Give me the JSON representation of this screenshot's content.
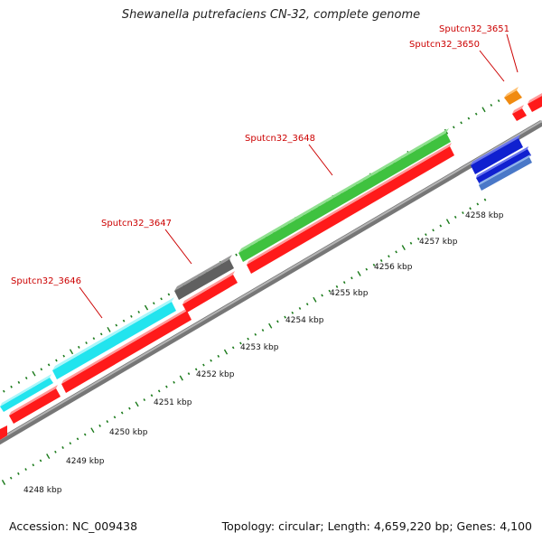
{
  "title": "Shewanella putrefaciens CN-32, complete genome",
  "footer": {
    "accession": "Accession: NC_009438",
    "summary": "Topology: circular; Length: 4,659,220 bp; Genes: 4,100"
  },
  "gene_labels": [
    "Sputcn32_3646",
    "Sputcn32_3647",
    "Sputcn32_3648",
    "Sputcn32_3650",
    "Sputcn32_3651"
  ],
  "kbp_labels": [
    "4248 kbp",
    "4249 kbp",
    "4250 kbp",
    "4251 kbp",
    "4252 kbp",
    "4253 kbp",
    "4254 kbp",
    "4255 kbp",
    "4256 kbp",
    "4257 kbp",
    "4258 kbp"
  ],
  "colors": {
    "cyan_feature": "#22e4ee",
    "grey_feature": "#606060",
    "green_feature": "#3fc23f",
    "orange_feature": "#f08a10",
    "red_feature": "#ff1a1a",
    "blue_feature": "#1020d0",
    "steel_feature": "#4a78c8",
    "backbone": "#8a8a8a",
    "tick": "#1a7a1a",
    "label_red": "#cc0000"
  }
}
